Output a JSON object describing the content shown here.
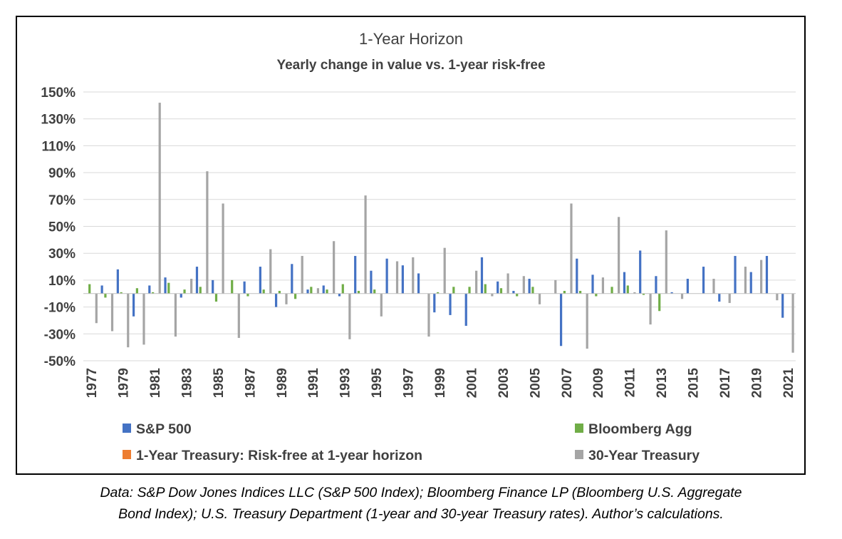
{
  "chart_data": {
    "type": "bar",
    "title": "1-Year Horizon",
    "subtitle": "Yearly change in value vs. 1-year risk-free",
    "xlabel": "",
    "ylabel": "",
    "ylim": [
      -50,
      150
    ],
    "y_ticks": [
      150,
      130,
      110,
      90,
      70,
      50,
      30,
      10,
      -10,
      -30,
      -50
    ],
    "y_tick_labels": [
      "150%",
      "130%",
      "110%",
      "90%",
      "70%",
      "50%",
      "30%",
      "10%",
      "-10%",
      "-30%",
      "-50%"
    ],
    "grid": true,
    "legend_position": "bottom",
    "categories": [
      "1977",
      "1978",
      "1979",
      "1980",
      "1981",
      "1982",
      "1983",
      "1984",
      "1985",
      "1986",
      "1987",
      "1988",
      "1989",
      "1990",
      "1991",
      "1992",
      "1993",
      "1994",
      "1995",
      "1996",
      "1997",
      "1998",
      "1999",
      "2000",
      "2001",
      "2002",
      "2003",
      "2004",
      "2005",
      "2006",
      "2007",
      "2008",
      "2009",
      "2010",
      "2011",
      "2012",
      "2013",
      "2014",
      "2015",
      "2016",
      "2017",
      "2018",
      "2019",
      "2020",
      "2021"
    ],
    "x_tick_labels": [
      "1977",
      "1979",
      "1981",
      "1983",
      "1985",
      "1987",
      "1989",
      "1991",
      "1993",
      "1995",
      "1997",
      "1999",
      "2001",
      "2003",
      "2005",
      "2007",
      "2009",
      "2011",
      "2013",
      "2015",
      "2017",
      "2019",
      "2021"
    ],
    "series": [
      {
        "name": "S&P 500",
        "color": "#4472C4",
        "values": [
          0,
          6,
          18,
          -17,
          6,
          12,
          -3,
          20,
          10,
          0,
          9,
          20,
          -10,
          22,
          3,
          6,
          -2,
          28,
          17,
          26,
          21,
          15,
          -14,
          -16,
          -24,
          27,
          9,
          2,
          11,
          0,
          -39,
          26,
          14,
          0,
          16,
          32,
          13,
          1,
          11,
          20,
          -6,
          28,
          16,
          28,
          -18
        ]
      },
      {
        "name": "Bloomberg Agg",
        "color": "#70AD47",
        "values": [
          7,
          -3,
          1,
          4,
          1,
          8,
          3,
          5,
          -6,
          10,
          -2,
          3,
          2,
          -4,
          5,
          3,
          7,
          2,
          3,
          0,
          0,
          0,
          1,
          5,
          5,
          7,
          4,
          -2,
          5,
          0,
          2,
          2,
          -2,
          5,
          6,
          -1,
          -13,
          0,
          0,
          0,
          0,
          0,
          0,
          0,
          0
        ]
      },
      {
        "name": "1-Year Treasury: Risk-free at 1-year horizon",
        "color": "#ED7D31",
        "values": [
          0,
          0,
          0,
          0,
          0,
          0,
          0,
          0,
          0,
          0,
          0,
          0,
          0,
          0,
          0,
          0,
          0,
          0,
          0,
          0,
          0,
          0,
          0,
          0,
          0,
          0,
          0,
          0,
          0,
          0,
          0,
          0,
          0,
          0,
          0,
          0,
          0,
          0,
          0,
          0,
          0,
          0,
          0,
          0,
          0
        ]
      },
      {
        "name": "30-Year Treasury",
        "color": "#A5A5A5",
        "values": [
          -22,
          -28,
          -40,
          -38,
          142,
          -32,
          11,
          91,
          67,
          -33,
          0,
          33,
          -8,
          28,
          4,
          39,
          -34,
          73,
          -17,
          24,
          27,
          -32,
          34,
          0,
          17,
          -2,
          15,
          13,
          -8,
          10,
          67,
          -41,
          12,
          57,
          1,
          -23,
          47,
          -4,
          0,
          11,
          -7,
          20,
          25,
          -5,
          -44
        ]
      }
    ]
  },
  "legend": {
    "items": [
      {
        "label": "S&P 500",
        "color": "#4472C4"
      },
      {
        "label": "Bloomberg Agg",
        "color": "#70AD47"
      },
      {
        "label": "1-Year Treasury: Risk-free at 1-year horizon",
        "color": "#ED7D31"
      },
      {
        "label": "30-Year Treasury",
        "color": "#A5A5A5"
      }
    ]
  },
  "caption": {
    "line1": "Data: S&P Dow Jones Indices LLC (S&P 500 Index); Bloomberg Finance LP (Bloomberg U.S. Aggregate",
    "line2": "Bond Index); U.S. Treasury Department (1-year and 30-year Treasury rates). Author’s calculations."
  }
}
